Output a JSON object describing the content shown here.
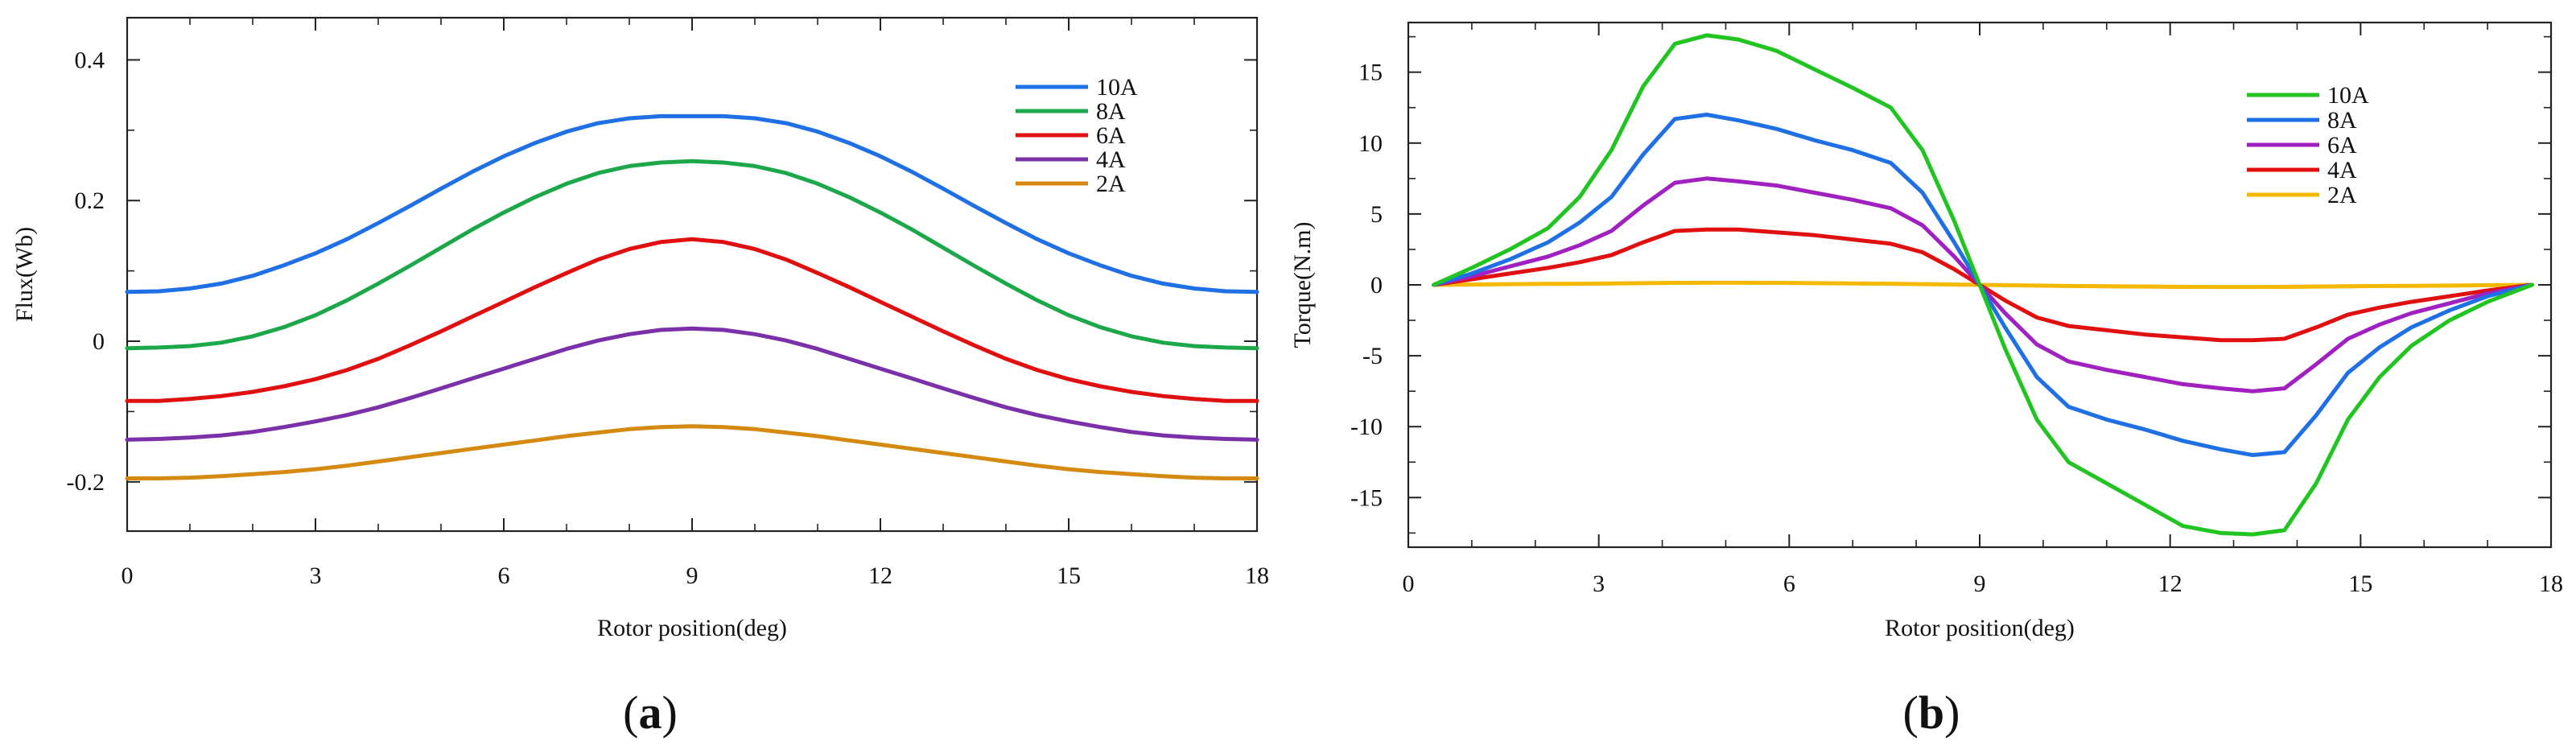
{
  "chart_data": [
    {
      "type": "line",
      "panel_label": "(a)",
      "panel_letter": "a",
      "xlabel": "Rotor position(deg)",
      "ylabel": "Flux(Wb)",
      "xlim": [
        0,
        18
      ],
      "ylim": [
        -0.27,
        0.46
      ],
      "xticks": [
        0,
        3,
        6,
        9,
        12,
        15,
        18
      ],
      "xtick_labels": [
        "0",
        "3",
        "6",
        "9",
        "12",
        "15",
        "18"
      ],
      "yticks": [
        -0.2,
        0,
        0.2,
        0.4
      ],
      "ytick_labels": [
        "-0.2",
        "0",
        "0.2",
        "0.4"
      ],
      "grid": false,
      "legend_position": "top-right",
      "x": [
        0,
        0.5,
        1,
        1.5,
        2,
        2.5,
        3,
        3.5,
        4,
        4.5,
        5,
        5.5,
        6,
        6.5,
        7,
        7.5,
        8,
        8.5,
        9,
        9.5,
        10,
        10.5,
        11,
        11.5,
        12,
        12.5,
        13,
        13.5,
        14,
        14.5,
        15,
        15.5,
        16,
        16.5,
        17,
        17.5,
        18
      ],
      "series": [
        {
          "name": "10A",
          "color": "#1F6FE5",
          "values": [
            0.07,
            0.071,
            0.075,
            0.082,
            0.093,
            0.108,
            0.125,
            0.145,
            0.168,
            0.192,
            0.217,
            0.241,
            0.263,
            0.282,
            0.298,
            0.31,
            0.317,
            0.32,
            0.32,
            0.32,
            0.317,
            0.31,
            0.298,
            0.282,
            0.263,
            0.241,
            0.217,
            0.192,
            0.168,
            0.145,
            0.125,
            0.108,
            0.093,
            0.082,
            0.075,
            0.071,
            0.07
          ]
        },
        {
          "name": "8A",
          "color": "#1CA84A",
          "values": [
            -0.01,
            -0.009,
            -0.007,
            -0.002,
            0.007,
            0.02,
            0.037,
            0.058,
            0.082,
            0.107,
            0.133,
            0.159,
            0.183,
            0.205,
            0.224,
            0.239,
            0.249,
            0.254,
            0.256,
            0.254,
            0.249,
            0.239,
            0.224,
            0.205,
            0.183,
            0.159,
            0.133,
            0.107,
            0.082,
            0.058,
            0.037,
            0.02,
            0.007,
            -0.002,
            -0.007,
            -0.009,
            -0.01
          ]
        },
        {
          "name": "6A",
          "color": "#E01010",
          "values": [
            -0.085,
            -0.085,
            -0.082,
            -0.078,
            -0.072,
            -0.064,
            -0.054,
            -0.041,
            -0.025,
            -0.006,
            0.014,
            0.035,
            0.056,
            0.077,
            0.097,
            0.116,
            0.131,
            0.141,
            0.145,
            0.141,
            0.131,
            0.116,
            0.097,
            0.077,
            0.056,
            0.035,
            0.014,
            -0.006,
            -0.025,
            -0.041,
            -0.054,
            -0.064,
            -0.072,
            -0.078,
            -0.082,
            -0.085,
            -0.085
          ]
        },
        {
          "name": "4A",
          "color": "#7A30A8",
          "values": [
            -0.14,
            -0.139,
            -0.137,
            -0.134,
            -0.129,
            -0.122,
            -0.114,
            -0.105,
            -0.094,
            -0.081,
            -0.067,
            -0.053,
            -0.039,
            -0.025,
            -0.011,
            0.001,
            0.01,
            0.016,
            0.018,
            0.016,
            0.01,
            0.001,
            -0.011,
            -0.025,
            -0.039,
            -0.053,
            -0.067,
            -0.081,
            -0.094,
            -0.105,
            -0.114,
            -0.122,
            -0.129,
            -0.134,
            -0.137,
            -0.139,
            -0.14
          ]
        },
        {
          "name": "2A",
          "color": "#D48A10",
          "values": [
            -0.195,
            -0.195,
            -0.194,
            -0.192,
            -0.189,
            -0.186,
            -0.182,
            -0.177,
            -0.171,
            -0.165,
            -0.159,
            -0.153,
            -0.147,
            -0.141,
            -0.135,
            -0.13,
            -0.125,
            -0.122,
            -0.121,
            -0.122,
            -0.125,
            -0.13,
            -0.135,
            -0.141,
            -0.147,
            -0.153,
            -0.159,
            -0.165,
            -0.171,
            -0.177,
            -0.182,
            -0.186,
            -0.189,
            -0.192,
            -0.194,
            -0.195,
            -0.195
          ]
        }
      ]
    },
    {
      "type": "line",
      "panel_label": "(b)",
      "panel_letter": "b",
      "xlabel": "Rotor position(deg)",
      "ylabel": "Torque(N.m)",
      "xlim": [
        0,
        18
      ],
      "ylim": [
        -18.5,
        18.5
      ],
      "xticks": [
        0,
        3,
        6,
        9,
        12,
        15,
        18
      ],
      "xtick_labels": [
        "0",
        "3",
        "6",
        "9",
        "12",
        "15",
        "18"
      ],
      "yticks": [
        -15,
        -10,
        -5,
        0,
        5,
        10,
        15
      ],
      "ytick_labels": [
        "-15",
        "-10",
        "-5",
        "0",
        "5",
        "10",
        "15"
      ],
      "grid": false,
      "legend_position": "top-right",
      "x": [
        0.4,
        1.0,
        1.6,
        2.2,
        2.7,
        3.2,
        3.7,
        4.2,
        4.7,
        5.2,
        5.8,
        6.4,
        7.0,
        7.6,
        8.1,
        8.6,
        9.0,
        9.4,
        9.9,
        10.4,
        11.0,
        11.6,
        12.2,
        12.8,
        13.3,
        13.8,
        14.3,
        14.8,
        15.3,
        15.8,
        16.4,
        17.0,
        17.7
      ],
      "series": [
        {
          "name": "10A",
          "color": "#22C422",
          "values": [
            0,
            1.2,
            2.5,
            4.0,
            6.2,
            9.5,
            14.0,
            17.0,
            17.6,
            17.3,
            16.5,
            15.2,
            13.9,
            12.5,
            9.5,
            4.5,
            0,
            -4.5,
            -9.5,
            -12.5,
            -14.0,
            -15.5,
            -17.0,
            -17.5,
            -17.6,
            -17.3,
            -14.0,
            -9.5,
            -6.5,
            -4.3,
            -2.5,
            -1.2,
            0
          ]
        },
        {
          "name": "8A",
          "color": "#1F6FE5",
          "values": [
            0,
            0.8,
            1.8,
            3.0,
            4.4,
            6.2,
            9.2,
            11.7,
            12.0,
            11.6,
            11.0,
            10.2,
            9.5,
            8.6,
            6.5,
            3.0,
            0,
            -3.0,
            -6.5,
            -8.6,
            -9.5,
            -10.2,
            -11.0,
            -11.6,
            -12.0,
            -11.8,
            -9.2,
            -6.2,
            -4.4,
            -3.0,
            -1.8,
            -0.8,
            0
          ]
        },
        {
          "name": "6A",
          "color": "#A020C0",
          "values": [
            0,
            0.6,
            1.3,
            2.0,
            2.8,
            3.8,
            5.6,
            7.2,
            7.5,
            7.3,
            7.0,
            6.5,
            6.0,
            5.4,
            4.2,
            2.0,
            0,
            -2.0,
            -4.2,
            -5.4,
            -6.0,
            -6.5,
            -7.0,
            -7.3,
            -7.5,
            -7.3,
            -5.6,
            -3.8,
            -2.8,
            -2.0,
            -1.3,
            -0.6,
            0
          ]
        },
        {
          "name": "4A",
          "color": "#E01010",
          "values": [
            0,
            0.4,
            0.8,
            1.2,
            1.6,
            2.1,
            3.0,
            3.8,
            3.9,
            3.9,
            3.7,
            3.5,
            3.2,
            2.9,
            2.3,
            1.1,
            0,
            -1.1,
            -2.3,
            -2.9,
            -3.2,
            -3.5,
            -3.7,
            -3.9,
            -3.9,
            -3.8,
            -3.0,
            -2.1,
            -1.6,
            -1.2,
            -0.8,
            -0.4,
            0
          ]
        },
        {
          "name": "2A",
          "color": "#F5B800",
          "values": [
            0,
            0.02,
            0.05,
            0.07,
            0.08,
            0.1,
            0.12,
            0.14,
            0.15,
            0.15,
            0.14,
            0.12,
            0.1,
            0.08,
            0.05,
            0.02,
            0,
            -0.02,
            -0.05,
            -0.08,
            -0.1,
            -0.12,
            -0.14,
            -0.15,
            -0.15,
            -0.14,
            -0.12,
            -0.1,
            -0.08,
            -0.07,
            -0.05,
            -0.02,
            0
          ]
        }
      ]
    }
  ]
}
